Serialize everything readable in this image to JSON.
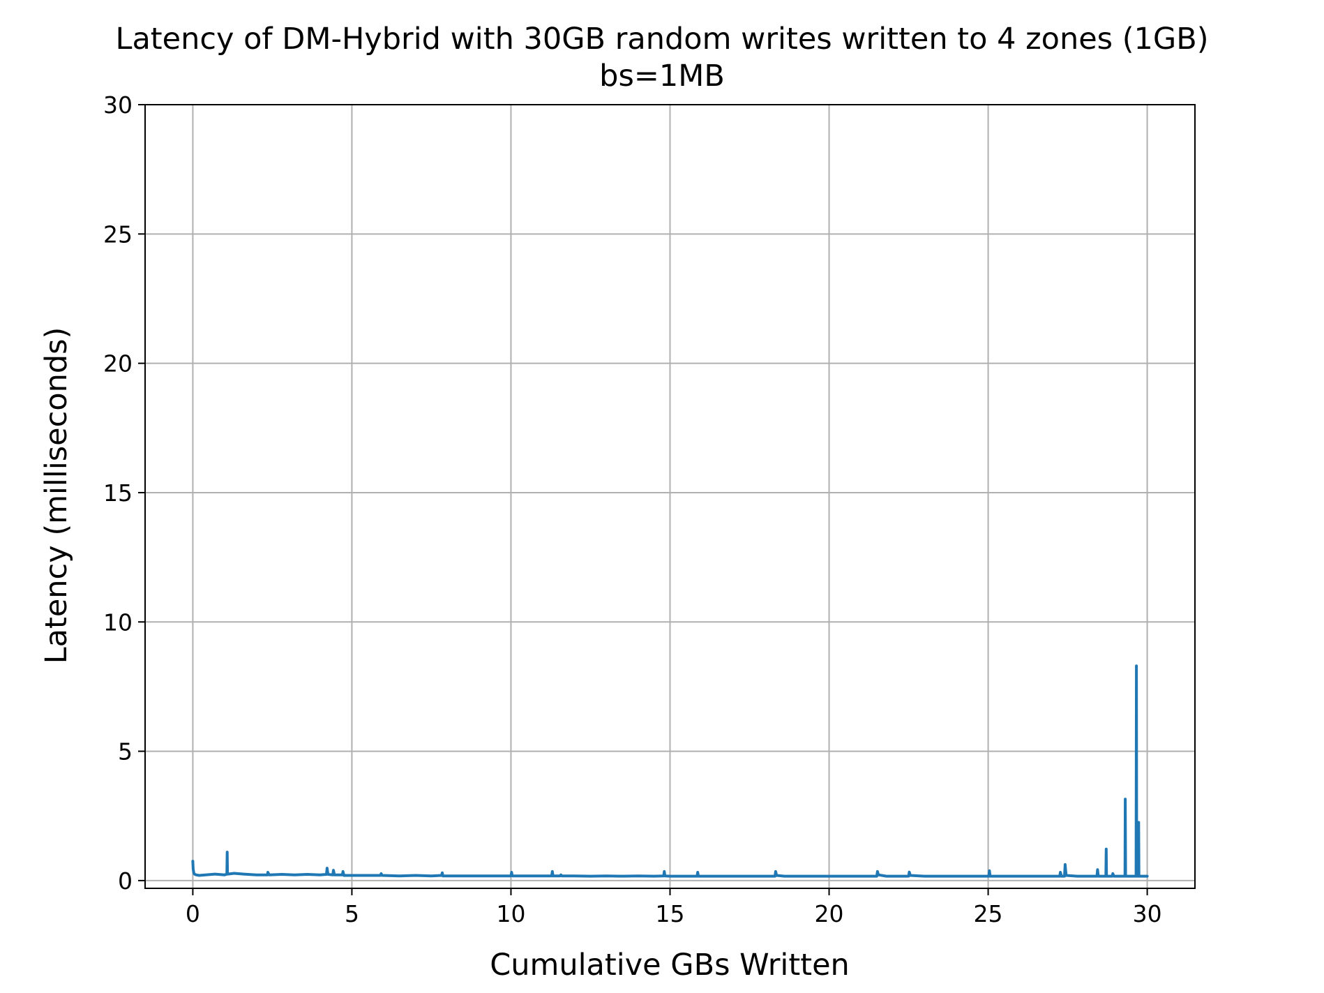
{
  "chart_data": {
    "type": "line",
    "title": "Latency of DM-Hybrid with 30GB random writes written to 4 zones (1GB)",
    "subtitle": "bs=1MB",
    "xlabel": "Cumulative GBs Written",
    "ylabel": "Latency (milliseconds)",
    "xlim": [
      -1.5,
      31.5
    ],
    "ylim": [
      -0.3,
      30
    ],
    "xticks": [
      0,
      5,
      10,
      15,
      20,
      25,
      30
    ],
    "yticks": [
      0,
      5,
      10,
      15,
      20,
      25,
      30
    ],
    "grid": true,
    "legend": "none",
    "series": [
      {
        "color": "#1f77b4",
        "x": [
          0.0,
          0.01,
          0.03,
          0.05,
          0.1,
          0.2,
          0.4,
          0.7,
          1.0,
          1.07,
          1.08,
          1.09,
          1.1,
          1.3,
          1.6,
          2.0,
          2.35,
          2.36,
          2.4,
          2.8,
          3.2,
          3.6,
          4.0,
          4.2,
          4.22,
          4.25,
          4.4,
          4.42,
          4.45,
          4.7,
          4.72,
          4.75,
          5.0,
          5.5,
          5.9,
          5.92,
          5.95,
          6.5,
          7.0,
          7.5,
          7.82,
          7.84,
          7.86,
          8.5,
          9.0,
          9.5,
          10.0,
          10.02,
          10.04,
          10.5,
          11.0,
          11.28,
          11.3,
          11.32,
          11.55,
          11.57,
          11.6,
          12.0,
          12.5,
          13.0,
          13.5,
          14.0,
          14.5,
          14.8,
          14.82,
          14.84,
          15.0,
          15.5,
          15.85,
          15.87,
          15.89,
          16.5,
          17.0,
          17.5,
          18.0,
          18.3,
          18.32,
          18.35,
          18.6,
          19.0,
          19.5,
          20.0,
          20.5,
          21.0,
          21.5,
          21.52,
          21.55,
          21.8,
          22.0,
          22.5,
          22.52,
          22.55,
          23.0,
          23.5,
          24.0,
          24.5,
          25.02,
          25.04,
          25.06,
          25.5,
          26.0,
          26.5,
          27.0,
          27.25,
          27.27,
          27.3,
          27.4,
          27.42,
          27.45,
          27.8,
          28.2,
          28.42,
          28.44,
          28.46,
          28.7,
          28.71,
          28.72,
          28.73,
          28.9,
          28.92,
          28.95,
          29.3,
          29.31,
          29.32,
          29.33,
          29.5,
          29.65,
          29.66,
          29.67,
          29.68,
          29.72,
          29.73,
          29.74,
          29.75,
          29.85,
          29.95,
          30.0
        ],
        "y": [
          0.75,
          0.45,
          0.3,
          0.25,
          0.22,
          0.2,
          0.22,
          0.25,
          0.22,
          0.25,
          1.1,
          0.3,
          0.25,
          0.28,
          0.25,
          0.22,
          0.22,
          0.32,
          0.22,
          0.24,
          0.22,
          0.24,
          0.22,
          0.24,
          0.48,
          0.24,
          0.22,
          0.4,
          0.22,
          0.22,
          0.35,
          0.2,
          0.2,
          0.2,
          0.2,
          0.27,
          0.2,
          0.18,
          0.2,
          0.18,
          0.2,
          0.3,
          0.18,
          0.18,
          0.18,
          0.18,
          0.18,
          0.32,
          0.18,
          0.18,
          0.18,
          0.18,
          0.35,
          0.18,
          0.18,
          0.22,
          0.18,
          0.18,
          0.17,
          0.18,
          0.17,
          0.18,
          0.17,
          0.18,
          0.35,
          0.18,
          0.17,
          0.17,
          0.17,
          0.32,
          0.17,
          0.17,
          0.17,
          0.17,
          0.17,
          0.17,
          0.35,
          0.2,
          0.17,
          0.17,
          0.17,
          0.17,
          0.17,
          0.17,
          0.17,
          0.35,
          0.22,
          0.17,
          0.17,
          0.17,
          0.33,
          0.2,
          0.17,
          0.17,
          0.17,
          0.17,
          0.17,
          0.38,
          0.17,
          0.17,
          0.17,
          0.17,
          0.17,
          0.17,
          0.32,
          0.17,
          0.17,
          0.62,
          0.2,
          0.17,
          0.17,
          0.17,
          0.42,
          0.17,
          0.17,
          1.22,
          0.22,
          0.17,
          0.17,
          0.27,
          0.17,
          0.17,
          3.15,
          0.2,
          0.17,
          0.17,
          0.17,
          8.3,
          0.3,
          0.17,
          0.17,
          2.25,
          0.17,
          0.17,
          0.17,
          0.17,
          0.17
        ]
      }
    ]
  }
}
